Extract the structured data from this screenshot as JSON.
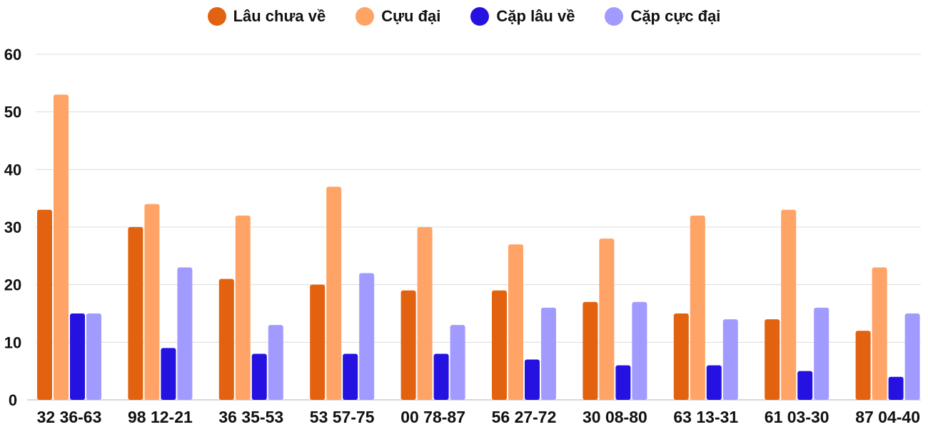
{
  "chart_data": {
    "type": "bar",
    "title": "",
    "xlabel": "",
    "ylabel": "",
    "ylim": [
      0,
      60
    ],
    "yticks": [
      "0",
      "10",
      "20",
      "30",
      "40",
      "50",
      "60"
    ],
    "grid": true,
    "legend_position": "top-center",
    "categories": [
      "32 36-63",
      "98 12-21",
      "36 35-53",
      "53 57-75",
      "00 78-87",
      "56 27-72",
      "30 08-80",
      "63 13-31",
      "61 03-30",
      "87 04-40"
    ],
    "series": [
      {
        "name": "Lâu chưa về",
        "color": "#e2620f",
        "values": [
          33,
          30,
          21,
          20,
          19,
          19,
          17,
          15,
          14,
          12
        ]
      },
      {
        "name": "Cựu đại",
        "color": "#ffa366",
        "values": [
          53,
          34,
          32,
          37,
          30,
          27,
          28,
          32,
          33,
          23
        ]
      },
      {
        "name": "Cặp lâu về",
        "color": "#2512e0",
        "values": [
          15,
          9,
          8,
          8,
          8,
          7,
          6,
          6,
          5,
          4
        ]
      },
      {
        "name": "Cặp cực đại",
        "color": "#a29bff",
        "values": [
          15,
          23,
          13,
          22,
          13,
          16,
          17,
          14,
          16,
          15
        ]
      }
    ]
  }
}
